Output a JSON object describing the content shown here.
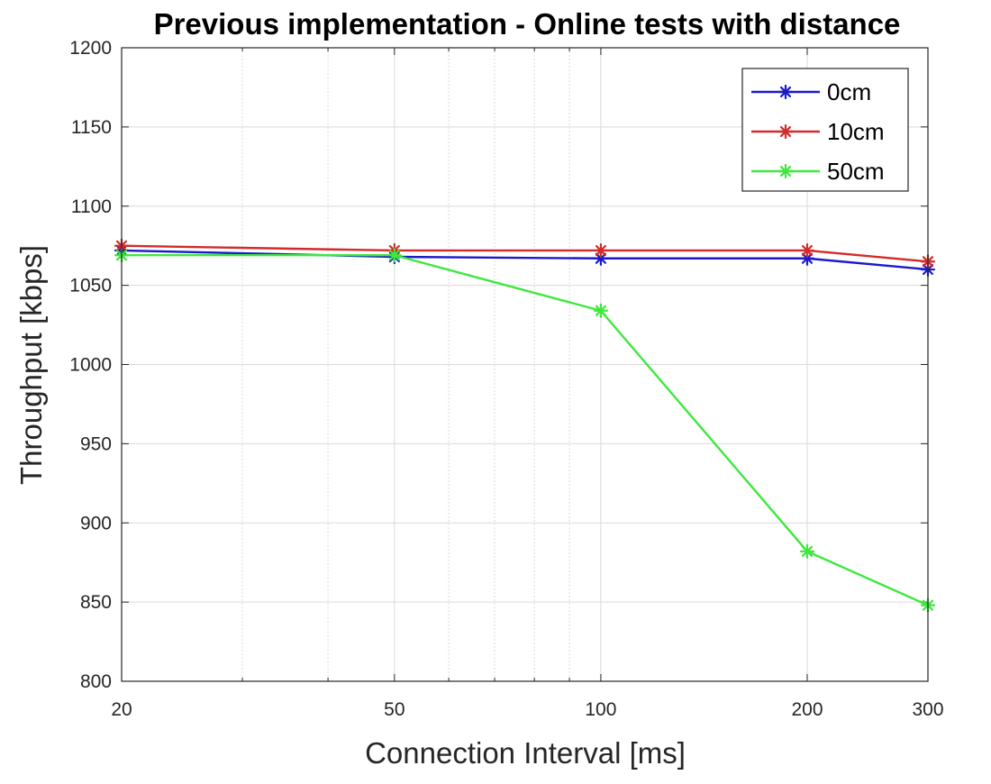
{
  "chart_data": {
    "type": "line",
    "title": "Previous implementation - Online tests with distance",
    "xlabel": "Connection Interval [ms]",
    "ylabel": "Throughput [kbps]",
    "xscale": "log",
    "xlim": [
      20,
      300
    ],
    "ylim": [
      800,
      1200
    ],
    "xticks": [
      20,
      50,
      100,
      200,
      300
    ],
    "yticks": [
      800,
      850,
      900,
      950,
      1000,
      1050,
      1100,
      1150,
      1200
    ],
    "grid": true,
    "legend_position": "top-right",
    "marker": "asterisk",
    "x": [
      20,
      50,
      100,
      200,
      300
    ],
    "series": [
      {
        "name": "0cm",
        "color": "#1a1acc",
        "values": [
          1072,
          1068,
          1067,
          1067,
          1060
        ]
      },
      {
        "name": "10cm",
        "color": "#d42a2a",
        "values": [
          1075,
          1072,
          1072,
          1072,
          1065
        ]
      },
      {
        "name": "50cm",
        "color": "#3ee83e",
        "values": [
          1069,
          1069,
          1034,
          882,
          848
        ]
      }
    ]
  }
}
